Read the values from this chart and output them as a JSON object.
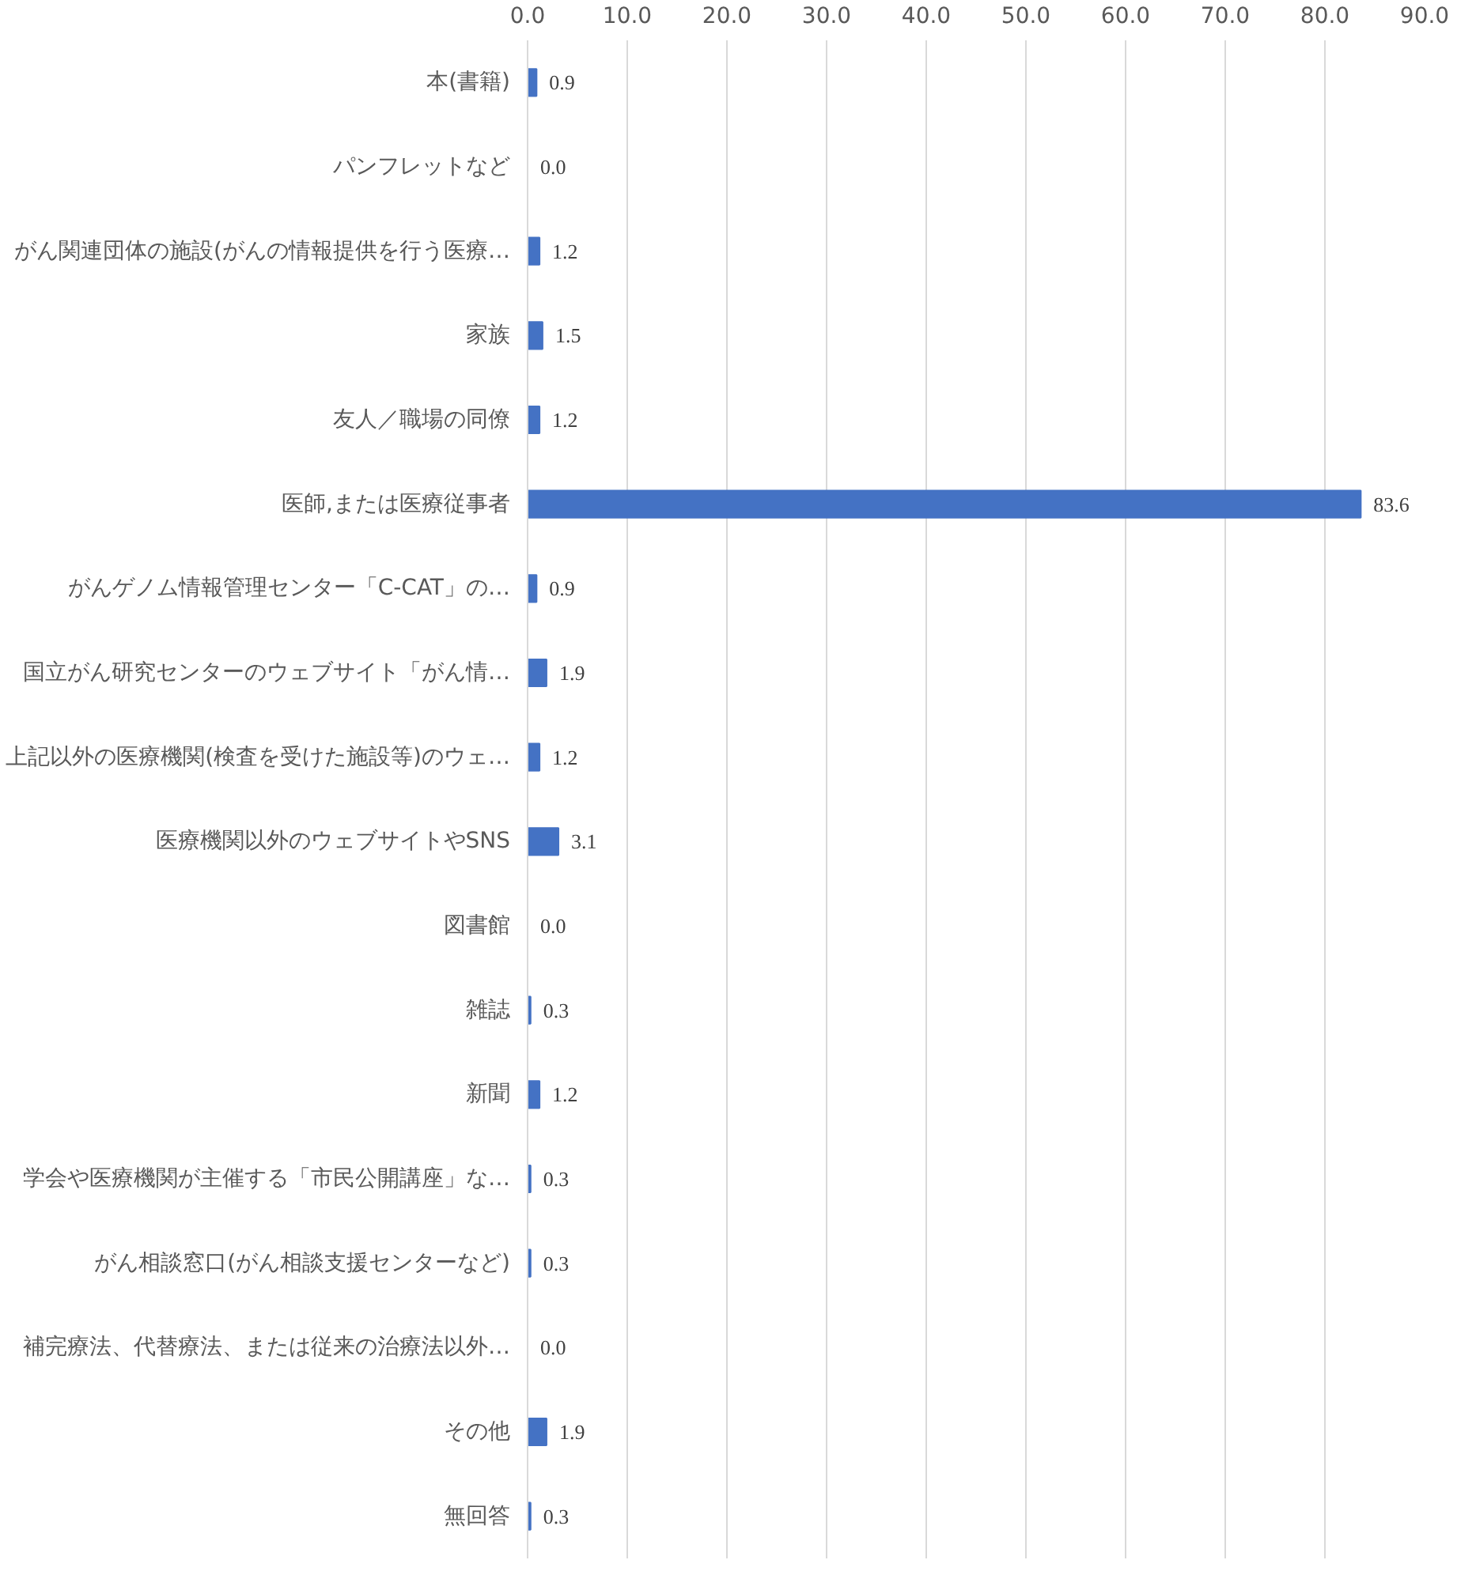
{
  "chart_data": {
    "type": "bar",
    "orientation": "horizontal",
    "categories": [
      "本(書籍)",
      "パンフレットなど",
      "がん関連団体の施設(がんの情報提供を行う医療…",
      "家族",
      "友人／職場の同僚",
      "医師,または医療従事者",
      "がんゲノム情報管理センター「C-CAT」の…",
      "国立がん研究センターのウェブサイト「がん情…",
      "上記以外の医療機関(検査を受けた施設等)のウェ…",
      "医療機関以外のウェブサイトやSNS",
      "図書館",
      "雑誌",
      "新聞",
      "学会や医療機関が主催する「市民公開講座」な…",
      "がん相談窓口(がん相談支援センターなど)",
      "補完療法、代替療法、または従来の治療法以外…",
      "その他",
      "無回答"
    ],
    "values": [
      0.9,
      0.0,
      1.2,
      1.5,
      1.2,
      83.6,
      0.9,
      1.9,
      1.2,
      3.1,
      0.0,
      0.3,
      1.2,
      0.3,
      0.3,
      0.0,
      1.9,
      0.3
    ],
    "value_labels": [
      "0.9",
      "0.0",
      "1.2",
      "1.5",
      "1.2",
      "83.6",
      "0.9",
      "1.9",
      "1.2",
      "3.1",
      "0.0",
      "0.3",
      "1.2",
      "0.3",
      "0.3",
      "0.0",
      "1.9",
      "0.3"
    ],
    "color": "#4472c4",
    "xlim": [
      0,
      90
    ],
    "xticks": [
      {
        "value": 0,
        "label": "0.0"
      },
      {
        "value": 10,
        "label": "10.0"
      },
      {
        "value": 20,
        "label": "20.0"
      },
      {
        "value": 30,
        "label": "30.0"
      },
      {
        "value": 40,
        "label": "40.0"
      },
      {
        "value": 50,
        "label": "50.0"
      },
      {
        "value": 60,
        "label": "60.0"
      },
      {
        "value": 70,
        "label": "70.0"
      },
      {
        "value": 80,
        "label": "80.0"
      },
      {
        "value": 90,
        "label": "90.0"
      }
    ],
    "grid": "x"
  }
}
